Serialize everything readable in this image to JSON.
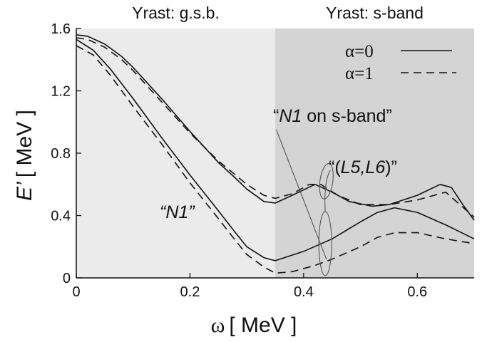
{
  "chart_data": {
    "type": "line",
    "xlabel_symbol": "ω",
    "xlabel_unit": "[ MeV ]",
    "ylabel_symbol": "E’",
    "ylabel_unit": "[ MeV ]",
    "xlim": [
      0,
      0.7
    ],
    "ylim": [
      0,
      1.6
    ],
    "xticks": [
      0,
      0.2,
      0.4,
      0.6
    ],
    "xtick_labels": [
      "0",
      "0.2",
      "0.4",
      "0.6"
    ],
    "yticks": [
      0,
      0.4,
      0.8,
      1.2,
      1.6
    ],
    "ytick_labels": [
      "0",
      "0.4",
      "0.8",
      "1.2",
      "1.6"
    ],
    "grid": false,
    "legend_position": "top-right",
    "regions": [
      {
        "label": "Yrast: g.s.b.",
        "x_range": [
          0,
          0.35
        ],
        "color": "#ebebeb"
      },
      {
        "label": "Yrast: s-band",
        "x_range": [
          0.35,
          0.7
        ],
        "color": "#d4d4d4"
      }
    ],
    "legend": [
      {
        "label": "α=0",
        "style": "solid"
      },
      {
        "label": "α=1",
        "style": "dashed"
      }
    ],
    "series": [
      {
        "style": "solid",
        "x": [
          0,
          0.02,
          0.05,
          0.08,
          0.1,
          0.15,
          0.2,
          0.25,
          0.28,
          0.3,
          0.33,
          0.35,
          0.38,
          0.42,
          0.45,
          0.48,
          0.52,
          0.55,
          0.6,
          0.64,
          0.66,
          0.68,
          0.7
        ],
        "y": [
          1.56,
          1.55,
          1.5,
          1.42,
          1.35,
          1.15,
          0.94,
          0.74,
          0.64,
          0.57,
          0.49,
          0.48,
          0.53,
          0.6,
          0.55,
          0.49,
          0.46,
          0.47,
          0.53,
          0.6,
          0.58,
          0.47,
          0.37
        ]
      },
      {
        "style": "dashed",
        "x": [
          0,
          0.02,
          0.05,
          0.08,
          0.1,
          0.15,
          0.2,
          0.25,
          0.28,
          0.3,
          0.33,
          0.35,
          0.38,
          0.41,
          0.43,
          0.46,
          0.5,
          0.55,
          0.6,
          0.65,
          0.7
        ],
        "y": [
          1.54,
          1.53,
          1.48,
          1.4,
          1.33,
          1.13,
          0.93,
          0.75,
          0.66,
          0.6,
          0.53,
          0.51,
          0.54,
          0.6,
          0.6,
          0.53,
          0.47,
          0.47,
          0.5,
          0.55,
          0.39
        ]
      },
      {
        "style": "solid",
        "x": [
          0,
          0.03,
          0.06,
          0.1,
          0.15,
          0.2,
          0.25,
          0.28,
          0.3,
          0.33,
          0.35,
          0.4,
          0.45,
          0.5,
          0.53,
          0.56,
          0.6,
          0.65,
          0.7
        ],
        "y": [
          1.53,
          1.46,
          1.34,
          1.15,
          0.9,
          0.66,
          0.43,
          0.29,
          0.2,
          0.13,
          0.11,
          0.17,
          0.25,
          0.36,
          0.42,
          0.45,
          0.42,
          0.34,
          0.25
        ]
      },
      {
        "style": "dashed",
        "x": [
          0,
          0.03,
          0.06,
          0.1,
          0.15,
          0.2,
          0.25,
          0.28,
          0.3,
          0.33,
          0.35,
          0.38,
          0.42,
          0.45,
          0.5,
          0.53,
          0.56,
          0.6,
          0.65,
          0.7
        ],
        "y": [
          1.49,
          1.43,
          1.3,
          1.1,
          0.86,
          0.61,
          0.38,
          0.24,
          0.15,
          0.07,
          0.03,
          0.04,
          0.08,
          0.12,
          0.2,
          0.26,
          0.29,
          0.29,
          0.25,
          0.22
        ]
      }
    ],
    "annotations": [
      {
        "text": "“N1”",
        "x": 0.2,
        "y": 0.44
      },
      {
        "text_prefix": "“",
        "text_italic": "N1",
        "text_suffix": " on s-band”",
        "x": 0.345,
        "y": 1.0
      },
      {
        "text_prefix": "“(",
        "text_italic": "L5,L6",
        "text_suffix": ")”",
        "x": 0.445,
        "y": 0.72
      }
    ]
  }
}
